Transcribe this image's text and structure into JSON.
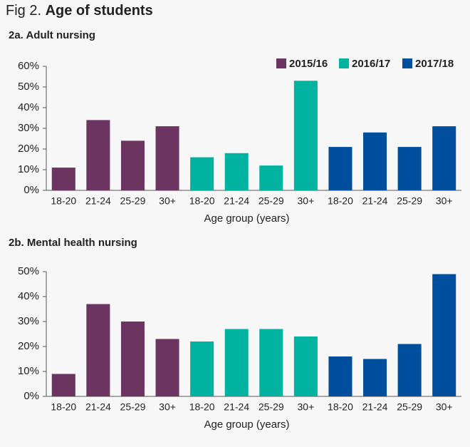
{
  "figure": {
    "label": "Fig 2.",
    "title": "Age of students"
  },
  "chart_data": [
    {
      "type": "bar",
      "title": "2a. Adult nursing",
      "x_label": "Age group (years)",
      "categories": [
        "18-20",
        "21-24",
        "25-29",
        "30+"
      ],
      "series": [
        {
          "name": "2015/16",
          "color": "#6b3461",
          "values": [
            11,
            34,
            24,
            31
          ]
        },
        {
          "name": "2016/17",
          "color": "#00b2a0",
          "values": [
            16,
            18,
            12,
            53
          ]
        },
        {
          "name": "2017/18",
          "color": "#004f9e",
          "values": [
            21,
            28,
            21,
            31
          ]
        }
      ],
      "ylim": [
        0,
        60
      ],
      "yticks": [
        {
          "value": 0,
          "label": "0%"
        },
        {
          "value": 10,
          "label": "10%"
        },
        {
          "value": 20,
          "label": "20%"
        },
        {
          "value": 30,
          "label": "30%"
        },
        {
          "value": 40,
          "label": "40%"
        },
        {
          "value": 50,
          "label": "50%"
        },
        {
          "value": 60,
          "label": "60%"
        }
      ],
      "grid": false,
      "legend": "top-right"
    },
    {
      "type": "bar",
      "title": "2b. Mental health nursing",
      "x_label": "Age group (years)",
      "categories": [
        "18-20",
        "21-24",
        "25-29",
        "30+"
      ],
      "series": [
        {
          "color": "#6b3461",
          "values": [
            9,
            37,
            30,
            23
          ]
        },
        {
          "color": "#00b2a0",
          "values": [
            22,
            27,
            27,
            24
          ]
        },
        {
          "color": "#004f9e",
          "values": [
            16,
            15,
            21,
            49
          ]
        }
      ],
      "ylim": [
        0,
        50
      ],
      "yticks": [
        {
          "value": 0,
          "label": "0%"
        },
        {
          "value": 10,
          "label": "10%"
        },
        {
          "value": 20,
          "label": "20%"
        },
        {
          "value": 30,
          "label": "30%"
        },
        {
          "value": 40,
          "label": "40%"
        },
        {
          "value": 50,
          "label": "50%"
        }
      ],
      "grid": false
    }
  ]
}
